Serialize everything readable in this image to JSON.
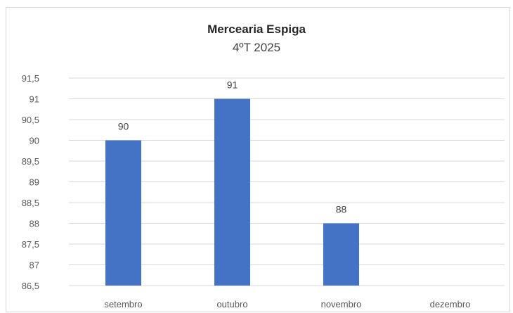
{
  "chart_data": {
    "type": "bar",
    "title": "Mercearia Espiga",
    "subtitle": "4ºT 2025",
    "categories": [
      "setembro",
      "outubro",
      "novembro",
      "dezembro"
    ],
    "values": [
      90,
      91,
      88,
      null
    ],
    "data_labels": [
      "90",
      "91",
      "88",
      ""
    ],
    "ylim": [
      86.5,
      91.5
    ],
    "y_ticks": [
      86.5,
      87,
      87.5,
      88,
      88.5,
      89,
      89.5,
      90,
      90.5,
      91,
      91.5
    ],
    "y_tick_labels": [
      "86,5",
      "87",
      "87,5",
      "88",
      "88,5",
      "89",
      "89,5",
      "90",
      "90,5",
      "91",
      "91,5"
    ],
    "grid": true,
    "legend": "none",
    "bar_color": "#4472c4",
    "grid_color": "#d9d9d9",
    "tick_color": "#595959"
  }
}
